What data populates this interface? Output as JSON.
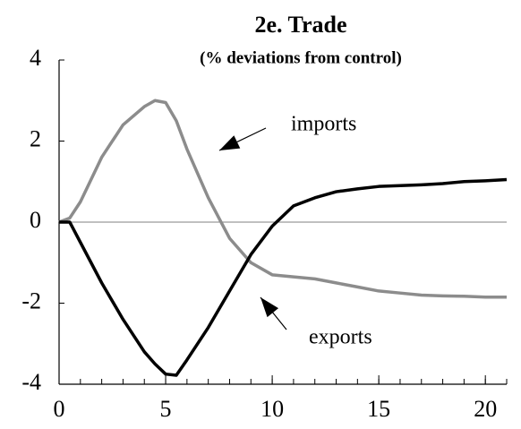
{
  "chart_data": {
    "type": "line",
    "title": "2e. Trade",
    "subtitle": "(% deviations from control)",
    "x": [
      0,
      0.5,
      1,
      2,
      3,
      4,
      4.5,
      5,
      5.5,
      6,
      7,
      8,
      9,
      10,
      11,
      12,
      13,
      14,
      15,
      16,
      17,
      18,
      19,
      20,
      21
    ],
    "series": [
      {
        "name": "imports",
        "color": "#8c8c8c",
        "values": [
          0,
          0.1,
          0.5,
          1.6,
          2.4,
          2.85,
          3.0,
          2.95,
          2.5,
          1.8,
          0.6,
          -0.4,
          -1.0,
          -1.3,
          -1.35,
          -1.4,
          -1.5,
          -1.6,
          -1.7,
          -1.75,
          -1.8,
          -1.82,
          -1.83,
          -1.85,
          -1.85
        ]
      },
      {
        "name": "exports",
        "color": "#000000",
        "values": [
          0,
          0,
          -0.5,
          -1.5,
          -2.4,
          -3.2,
          -3.5,
          -3.75,
          -3.78,
          -3.4,
          -2.6,
          -1.7,
          -0.8,
          -0.1,
          0.4,
          0.6,
          0.75,
          0.82,
          0.88,
          0.9,
          0.92,
          0.95,
          1.0,
          1.02,
          1.05
        ]
      }
    ],
    "xlim": [
      0,
      21
    ],
    "xticks": [
      0,
      5,
      10,
      15,
      20
    ],
    "ylim": [
      -4,
      4
    ],
    "yticks": [
      -4,
      -2,
      0,
      2,
      4
    ]
  }
}
